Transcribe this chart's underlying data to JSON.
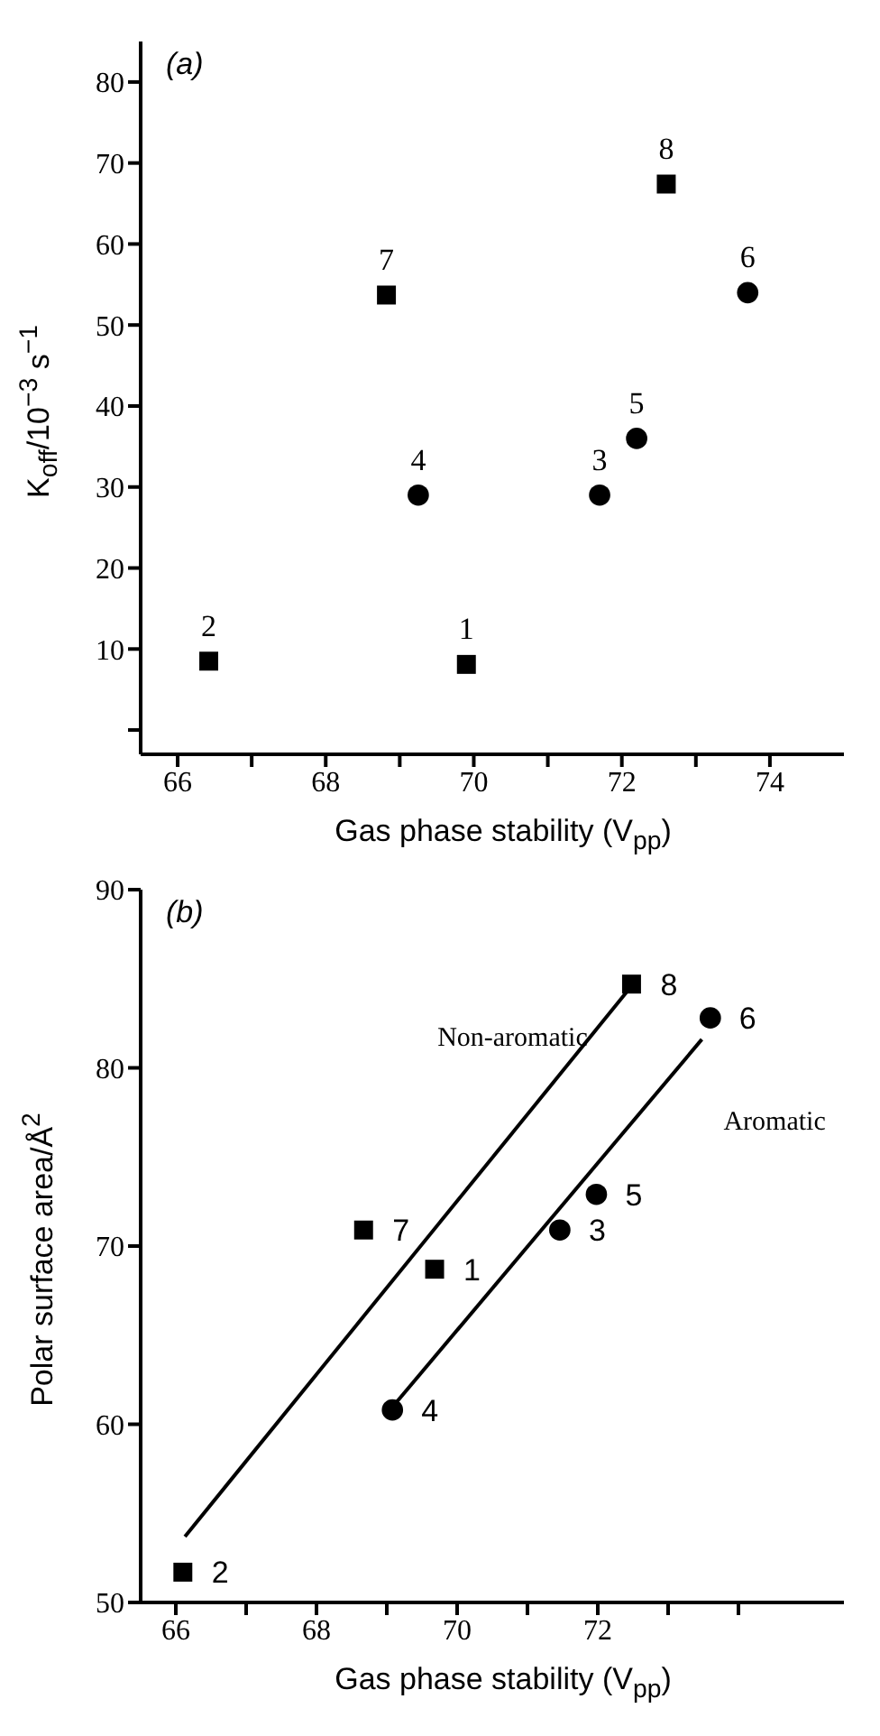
{
  "chart_data": [
    {
      "type": "scatter",
      "title": "(a)",
      "xlabel": "Gas phase stability (V$_{pp}$)",
      "ylabel": "K$_{off}$/10$^{−3}$ s$^{−1}$",
      "xlim": [
        65.5,
        75
      ],
      "xticks": [
        66,
        {
          "value": 67,
          "label": null
        },
        68,
        {
          "value": 69,
          "label": null
        },
        70,
        {
          "value": 71,
          "label": null
        },
        72,
        {
          "value": 73,
          "label": null
        },
        74
      ],
      "ylim": [
        -3,
        85
      ],
      "yticks": [
        {
          "value": 0,
          "label": null
        },
        10,
        20,
        30,
        40,
        50,
        60,
        70,
        80
      ],
      "grid": false,
      "legend": false,
      "series": [
        {
          "type": "scatter",
          "marker": "square",
          "color": "#000000",
          "x": [
            66.42,
            69.9,
            68.82,
            72.6
          ],
          "values": [
            8.5,
            8.1,
            53.7,
            67.4
          ]
        },
        {
          "type": "scatter",
          "marker": "circle",
          "color": "#000000",
          "x": [
            69.25,
            71.7,
            72.2,
            73.7
          ],
          "values": [
            29,
            29,
            36,
            54
          ]
        }
      ],
      "annotations": [
        {
          "text": "2",
          "x": 66.42,
          "y": 8.5
        },
        {
          "text": "1",
          "x": 69.9,
          "y": 8.1
        },
        {
          "text": "7",
          "x": 68.82,
          "y": 53.7
        },
        {
          "text": "8",
          "x": 72.6,
          "y": 67.4
        },
        {
          "text": "4",
          "x": 69.25,
          "y": 29
        },
        {
          "text": "3",
          "x": 71.7,
          "y": 29
        },
        {
          "text": "5",
          "x": 72.2,
          "y": 36
        },
        {
          "text": "6",
          "x": 73.7,
          "y": 54
        }
      ]
    },
    {
      "type": "scatter",
      "title": "(b)",
      "xlabel": "Gas phase stability (V$_{pp}$)",
      "ylabel": "Polar surface area/Å$^{2}$",
      "xlim": [
        65.5,
        75.5
      ],
      "xticks": [
        66,
        {
          "value": 67,
          "label": null
        },
        68,
        {
          "value": 69,
          "label": null
        },
        70,
        {
          "value": 71,
          "label": null
        },
        72,
        {
          "value": 73,
          "label": null
        },
        {
          "value": 74,
          "label": null
        }
      ],
      "ylim": [
        50,
        90
      ],
      "yticks": [
        50,
        60,
        70,
        80,
        90
      ],
      "grid": false,
      "legend": false,
      "series": [
        {
          "type": "scatter",
          "marker": "square",
          "color": "#000000",
          "x": [
            66.1,
            68.67,
            69.68,
            72.48
          ],
          "values": [
            51.7,
            70.9,
            68.7,
            84.7
          ]
        },
        {
          "type": "scatter",
          "marker": "circle",
          "color": "#000000",
          "x": [
            69.08,
            71.46,
            71.98,
            73.6
          ],
          "values": [
            60.8,
            70.9,
            72.9,
            82.8
          ]
        },
        {
          "type": "line",
          "name": "Non-aromatic",
          "marker": "none",
          "color": "#000000",
          "x": [
            66.13,
            72.42
          ],
          "values": [
            53.7,
            84.3
          ]
        },
        {
          "type": "line",
          "name": "Aromatic",
          "marker": "none",
          "color": "#000000",
          "x": [
            69.13,
            73.48
          ],
          "values": [
            61.2,
            81.6
          ]
        }
      ],
      "annotations": [
        {
          "text": "2",
          "x": 66.1,
          "y": 51.7
        },
        {
          "text": "7",
          "x": 68.67,
          "y": 70.9
        },
        {
          "text": "1",
          "x": 69.68,
          "y": 68.7
        },
        {
          "text": "8",
          "x": 72.48,
          "y": 84.7
        },
        {
          "text": "4",
          "x": 69.08,
          "y": 60.8
        },
        {
          "text": "3",
          "x": 71.46,
          "y": 70.9
        },
        {
          "text": "5",
          "x": 71.98,
          "y": 72.9
        },
        {
          "text": "6",
          "x": 73.6,
          "y": 82.8
        }
      ]
    }
  ]
}
